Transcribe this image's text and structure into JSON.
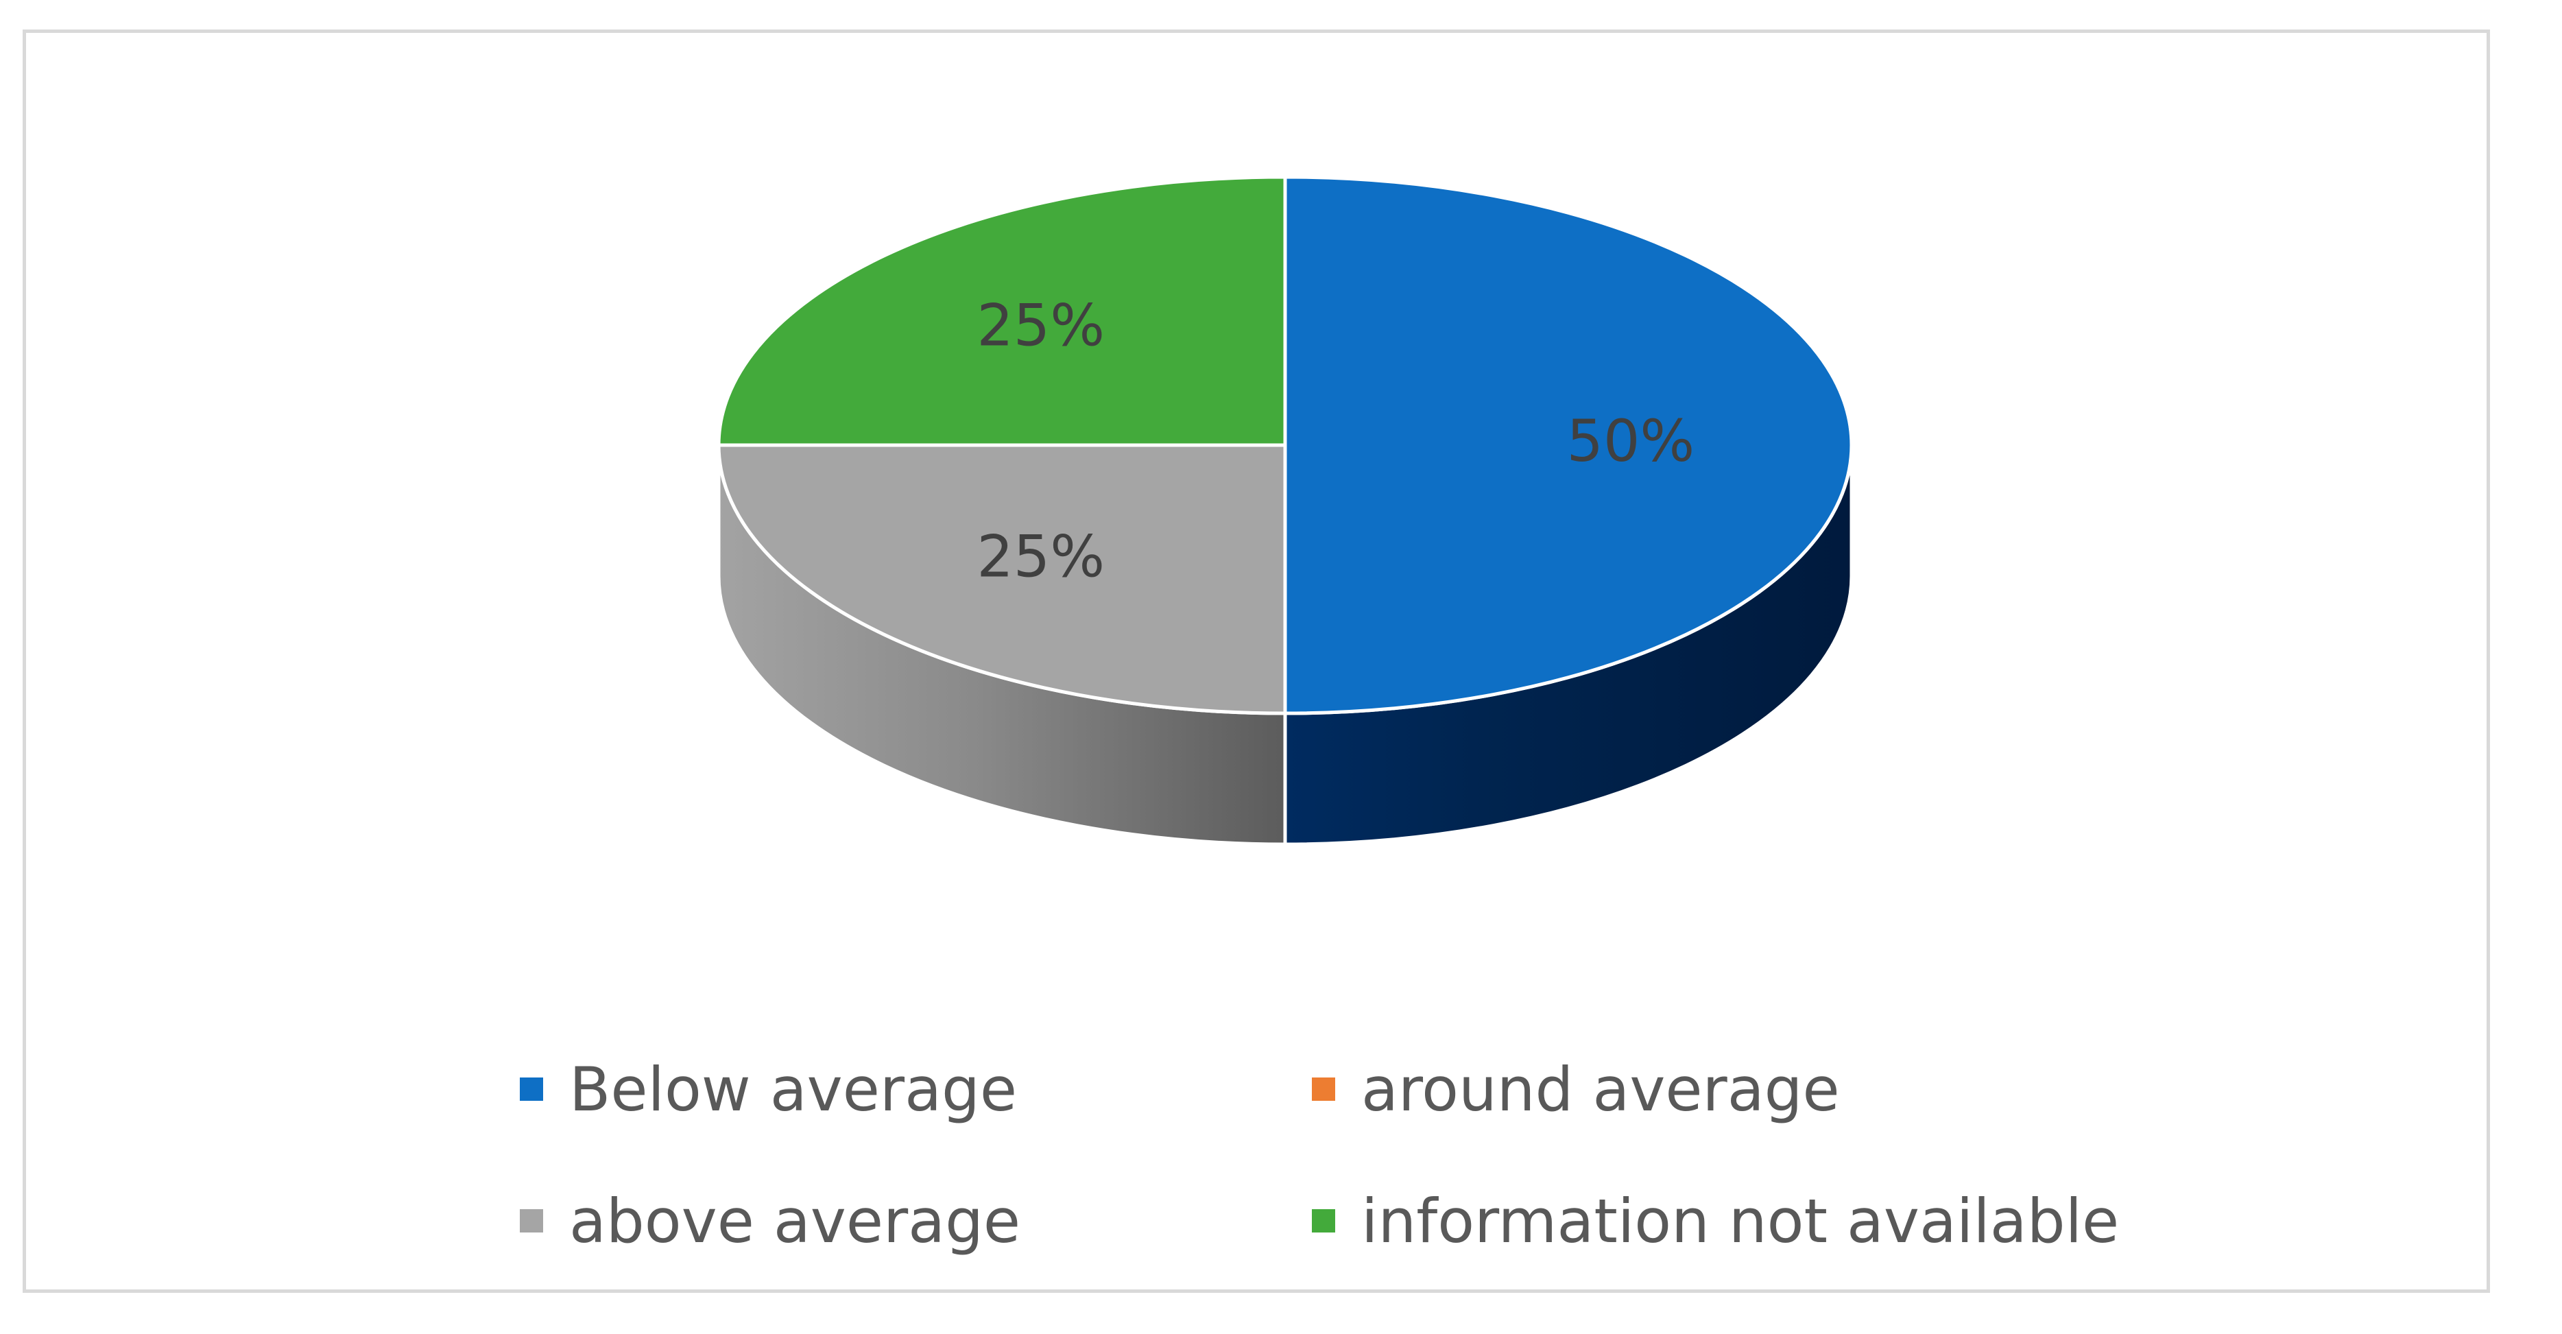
{
  "chart_data": {
    "type": "pie",
    "style": "3d",
    "slices": [
      {
        "name": "Below average",
        "value": 50,
        "label": "50%",
        "color": "#0e6fc5",
        "side_color": "#002a5c"
      },
      {
        "name": "around average",
        "value": 0,
        "label": "",
        "color": "#ed7d31",
        "side_color": "#8a4110"
      },
      {
        "name": "above average",
        "value": 25,
        "label": "25%",
        "color": "#a5a5a5",
        "side_color": "#6e6e6e"
      },
      {
        "name": "information not available",
        "value": 25,
        "label": "25%",
        "color": "#43aa3b",
        "side_color": "#25661f"
      }
    ],
    "legend": {
      "position": "bottom",
      "entries": [
        {
          "label": "Below average",
          "color": "#0e6fc5"
        },
        {
          "label": "around average",
          "color": "#ed7d31"
        },
        {
          "label": "above average",
          "color": "#a5a5a5"
        },
        {
          "label": "information not available",
          "color": "#43aa3b"
        }
      ]
    }
  }
}
